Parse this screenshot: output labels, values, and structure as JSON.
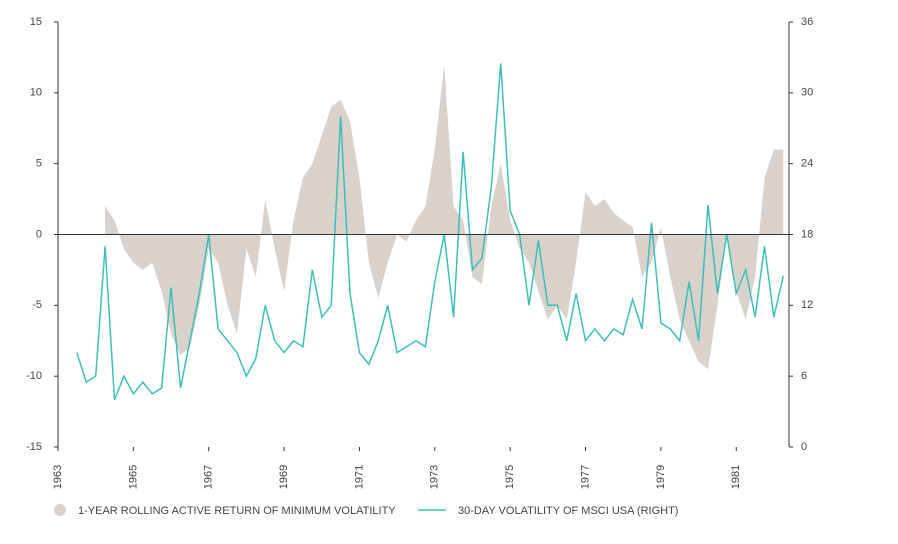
{
  "chart_data": {
    "type": "area-line",
    "x": [
      1963.5,
      1963.75,
      1964,
      1964.25,
      1964.5,
      1964.75,
      1965,
      1965.25,
      1965.5,
      1965.75,
      1966,
      1966.25,
      1966.5,
      1966.75,
      1967,
      1967.25,
      1967.5,
      1967.75,
      1968,
      1968.25,
      1968.5,
      1968.75,
      1969,
      1969.25,
      1969.5,
      1969.75,
      1970,
      1970.25,
      1970.5,
      1970.75,
      1971,
      1971.25,
      1971.5,
      1971.75,
      1972,
      1972.25,
      1972.5,
      1972.75,
      1973,
      1973.25,
      1973.5,
      1973.75,
      1974,
      1974.25,
      1974.5,
      1974.75,
      1975,
      1975.25,
      1975.5,
      1975.75,
      1976,
      1976.25,
      1976.5,
      1976.75,
      1977,
      1977.25,
      1977.5,
      1977.75,
      1978,
      1978.25,
      1978.5,
      1978.75,
      1979,
      1979.25,
      1979.5,
      1979.75,
      1980,
      1980.25,
      1980.5,
      1980.75,
      1981,
      1981.25,
      1981.5,
      1981.75,
      1982,
      1982.25
    ],
    "series": [
      {
        "name": "1-YEAR ROLLING ACTIVE RETURN OF MINIMUM VOLATILITY",
        "color": "#d9d2cc",
        "axis": "y",
        "values": [
          null,
          null,
          null,
          2,
          1,
          -1,
          -2,
          -2.5,
          -2,
          -4,
          -7,
          -8.5,
          -8,
          -5,
          -1,
          -2,
          -5,
          -7,
          -1,
          -3,
          2.5,
          -1,
          -4,
          1,
          4,
          5,
          7,
          9,
          9.5,
          8,
          4,
          -2,
          -4.5,
          -2,
          0,
          -0.5,
          1,
          2,
          6,
          12,
          2,
          1,
          -3,
          -3.5,
          2,
          5,
          1,
          -1,
          -2,
          -4,
          -6,
          -5,
          -6,
          -2,
          3,
          2,
          2.5,
          1.5,
          1,
          0.5,
          -3,
          -2,
          0.5,
          -3,
          -6,
          -7.5,
          -9,
          -9.5,
          -5,
          0,
          -4,
          -6,
          -3,
          4,
          6,
          6
        ]
      },
      {
        "name": "30-DAY VOLATILITY OF MSCI USA (RIGHT)",
        "color": "#3ebfb5",
        "axis": "y2",
        "values": [
          8,
          5.5,
          6,
          17,
          4,
          6,
          4.5,
          5.5,
          4.5,
          5,
          13.5,
          5,
          9,
          13,
          18,
          10,
          9,
          8,
          6,
          7.5,
          12,
          9,
          8,
          9,
          8.5,
          15,
          11,
          12,
          28,
          13,
          8,
          7,
          9,
          12,
          8,
          8.5,
          9,
          8.5,
          14,
          18,
          11,
          25,
          15,
          16,
          22,
          32.5,
          20,
          18,
          12,
          17.5,
          12,
          12,
          9,
          13,
          9,
          10,
          9,
          10,
          9.5,
          12.5,
          10,
          19,
          10.5,
          10,
          9,
          14,
          9,
          20.5,
          13,
          18,
          13,
          15,
          11,
          17,
          11,
          14.5
        ]
      }
    ],
    "xlim": [
      1963,
      1982.4
    ],
    "xticks": [
      1963,
      1965,
      1967,
      1969,
      1971,
      1973,
      1975,
      1977,
      1979,
      1981
    ],
    "ylim": [
      -15,
      15
    ],
    "yticks": [
      -15,
      -10,
      -5,
      0,
      5,
      10,
      15
    ],
    "y2lim": [
      0,
      36
    ],
    "y2ticks": [
      0,
      6,
      12,
      18,
      24,
      30,
      36
    ]
  }
}
